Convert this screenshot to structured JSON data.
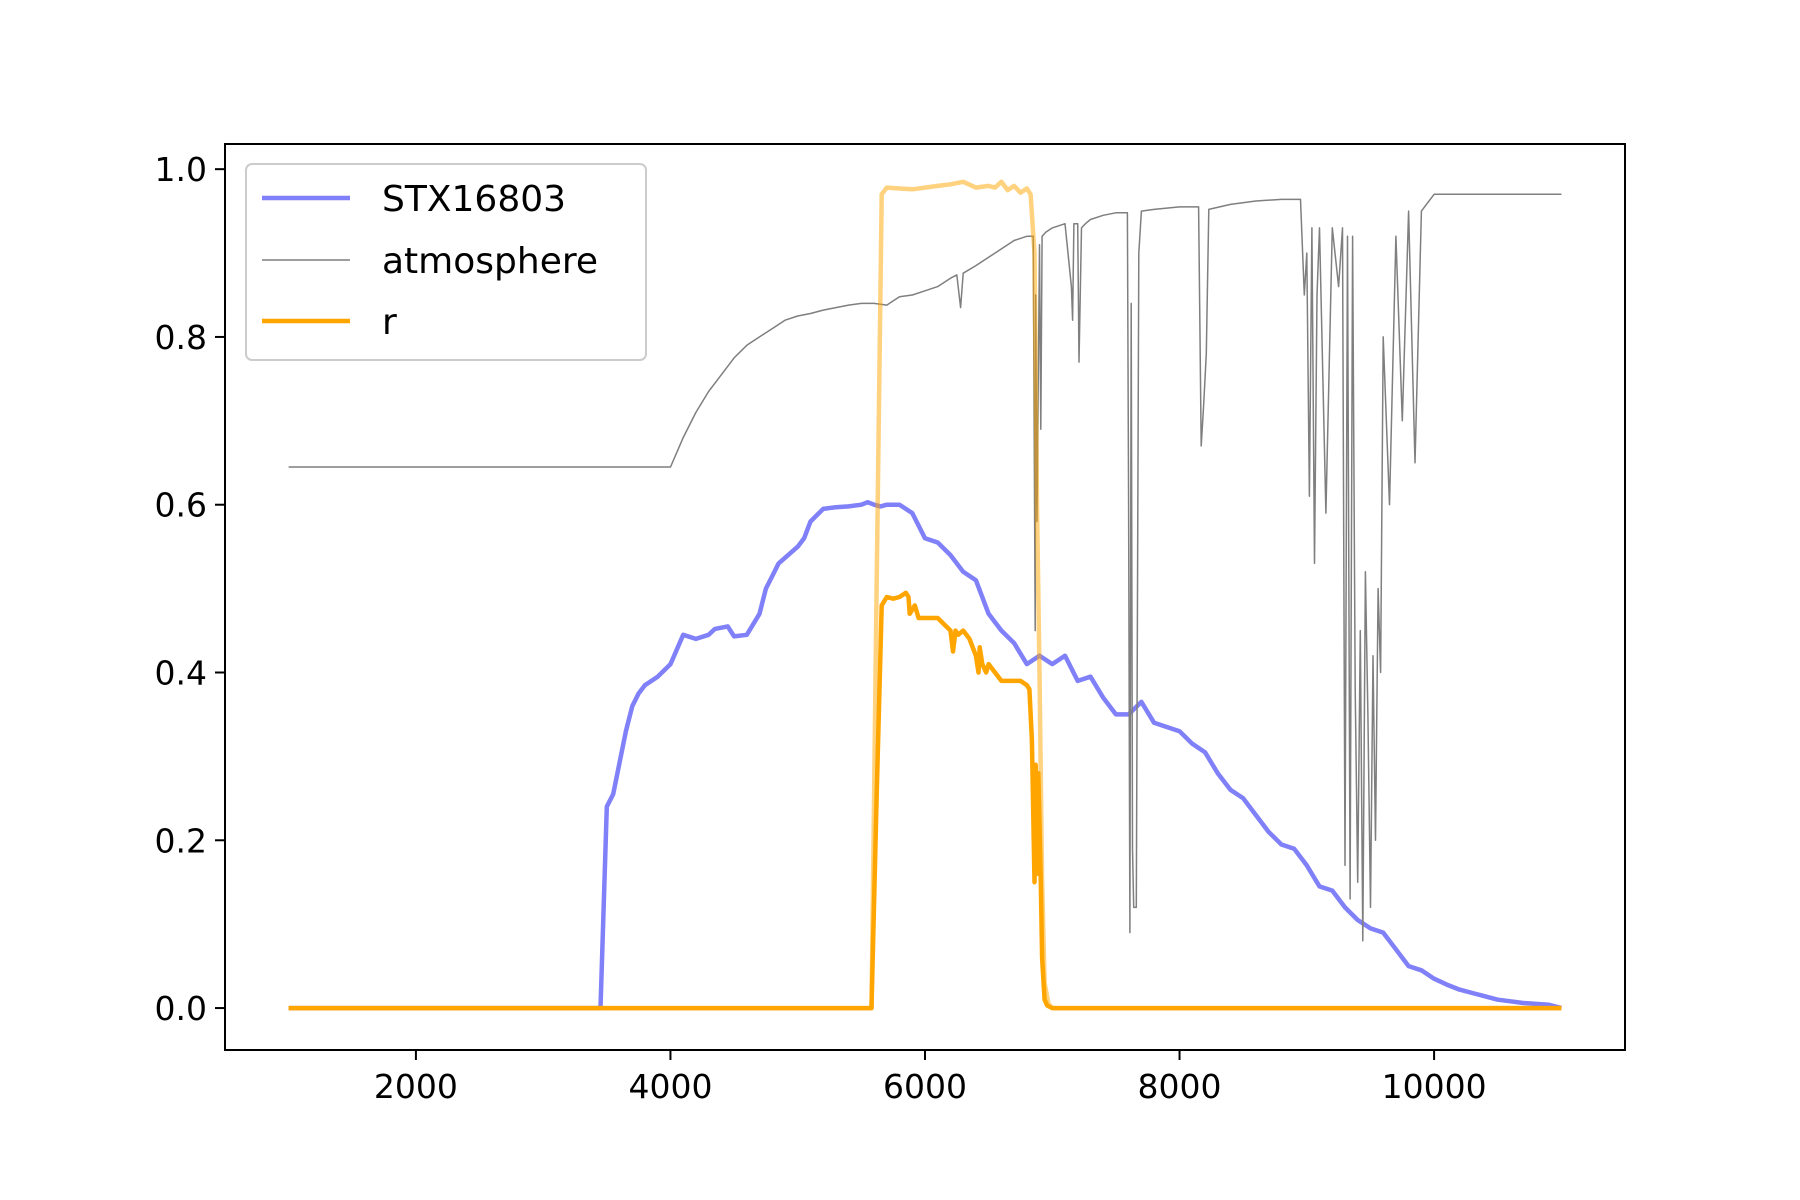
{
  "chart_data": {
    "type": "line",
    "title": "",
    "xlabel": "",
    "ylabel": "",
    "xlim": [
      500,
      11500
    ],
    "ylim": [
      -0.05,
      1.03
    ],
    "xticks": [
      2000,
      4000,
      6000,
      8000,
      10000
    ],
    "yticks": [
      0.0,
      0.2,
      0.4,
      0.6,
      0.8,
      1.0
    ],
    "xtick_labels": [
      "2000",
      "4000",
      "6000",
      "8000",
      "10000"
    ],
    "ytick_labels": [
      "0.0",
      "0.2",
      "0.4",
      "0.6",
      "0.8",
      "1.0"
    ],
    "grid": false,
    "legend_position": "upper-left",
    "series": [
      {
        "name": "STX16803",
        "color": "#8080f8",
        "x": [
          1000,
          3450,
          3500,
          3550,
          3650,
          3700,
          3750,
          3800,
          3900,
          4000,
          4100,
          4200,
          4300,
          4350,
          4450,
          4500,
          4600,
          4700,
          4750,
          4800,
          4850,
          5000,
          5050,
          5100,
          5200,
          5300,
          5400,
          5500,
          5550,
          5600,
          5650,
          5700,
          5800,
          5900,
          6000,
          6100,
          6200,
          6300,
          6400,
          6500,
          6600,
          6700,
          6800,
          6900,
          7000,
          7100,
          7200,
          7300,
          7400,
          7500,
          7600,
          7700,
          7800,
          7900,
          8000,
          8100,
          8200,
          8300,
          8400,
          8500,
          8600,
          8700,
          8800,
          8900,
          9000,
          9100,
          9200,
          9300,
          9400,
          9500,
          9600,
          9700,
          9800,
          9900,
          10000,
          10100,
          10200,
          10300,
          10400,
          10500,
          10600,
          10700,
          10800,
          10900,
          11000
        ],
        "y": [
          0,
          0,
          0.24,
          0.255,
          0.33,
          0.36,
          0.375,
          0.385,
          0.395,
          0.41,
          0.445,
          0.44,
          0.445,
          0.452,
          0.455,
          0.443,
          0.445,
          0.47,
          0.5,
          0.515,
          0.53,
          0.55,
          0.56,
          0.58,
          0.595,
          0.597,
          0.598,
          0.6,
          0.603,
          0.6,
          0.598,
          0.6,
          0.6,
          0.59,
          0.56,
          0.555,
          0.54,
          0.52,
          0.51,
          0.47,
          0.45,
          0.435,
          0.41,
          0.42,
          0.41,
          0.42,
          0.39,
          0.395,
          0.37,
          0.35,
          0.35,
          0.365,
          0.34,
          0.335,
          0.33,
          0.315,
          0.305,
          0.28,
          0.26,
          0.25,
          0.23,
          0.21,
          0.195,
          0.19,
          0.17,
          0.145,
          0.14,
          0.12,
          0.105,
          0.095,
          0.09,
          0.07,
          0.05,
          0.045,
          0.035,
          0.028,
          0.022,
          0.018,
          0.014,
          0.01,
          0.008,
          0.006,
          0.005,
          0.004,
          0.0
        ]
      },
      {
        "name": "atmosphere",
        "color": "#7f7f7f",
        "x": [
          1000,
          4000,
          4100,
          4200,
          4300,
          4400,
          4500,
          4600,
          4700,
          4800,
          4900,
          5000,
          5100,
          5200,
          5300,
          5400,
          5500,
          5600,
          5700,
          5800,
          5900,
          6000,
          6100,
          6200,
          6250,
          6280,
          6300,
          6400,
          6500,
          6600,
          6700,
          6800,
          6850,
          6866,
          6870,
          6880,
          6900,
          6910,
          6920,
          6950,
          7000,
          7100,
          7150,
          7160,
          7170,
          7200,
          7210,
          7230,
          7260,
          7300,
          7400,
          7500,
          7590,
          7600,
          7610,
          7620,
          7630,
          7640,
          7660,
          7680,
          7700,
          7800,
          8000,
          8150,
          8170,
          8190,
          8210,
          8230,
          8400,
          8600,
          8800,
          8950,
          8980,
          9000,
          9020,
          9040,
          9060,
          9080,
          9100,
          9150,
          9200,
          9250,
          9280,
          9300,
          9320,
          9340,
          9360,
          9380,
          9400,
          9420,
          9440,
          9460,
          9480,
          9500,
          9520,
          9540,
          9560,
          9580,
          9600,
          9650,
          9700,
          9750,
          9800,
          9850,
          9900,
          10000,
          11000
        ],
        "y": [
          0.645,
          0.645,
          0.68,
          0.71,
          0.735,
          0.755,
          0.775,
          0.79,
          0.8,
          0.81,
          0.82,
          0.825,
          0.828,
          0.832,
          0.835,
          0.838,
          0.84,
          0.84,
          0.838,
          0.848,
          0.85,
          0.855,
          0.86,
          0.87,
          0.874,
          0.835,
          0.876,
          0.885,
          0.895,
          0.905,
          0.915,
          0.92,
          0.92,
          0.45,
          0.85,
          0.58,
          0.91,
          0.69,
          0.92,
          0.925,
          0.93,
          0.935,
          0.86,
          0.82,
          0.935,
          0.935,
          0.77,
          0.93,
          0.935,
          0.94,
          0.945,
          0.948,
          0.948,
          0.6,
          0.09,
          0.84,
          0.19,
          0.12,
          0.12,
          0.9,
          0.95,
          0.952,
          0.955,
          0.955,
          0.67,
          0.72,
          0.78,
          0.952,
          0.958,
          0.962,
          0.964,
          0.964,
          0.85,
          0.9,
          0.61,
          0.93,
          0.53,
          0.85,
          0.93,
          0.59,
          0.93,
          0.86,
          0.93,
          0.17,
          0.92,
          0.13,
          0.92,
          0.38,
          0.15,
          0.45,
          0.08,
          0.52,
          0.35,
          0.12,
          0.42,
          0.2,
          0.5,
          0.4,
          0.8,
          0.6,
          0.92,
          0.7,
          0.95,
          0.65,
          0.95,
          0.97,
          0.97
        ]
      },
      {
        "name": "",
        "color": "#ffa500",
        "opacity": 0.5,
        "x": [
          1000,
          5580,
          5620,
          5660,
          5700,
          5800,
          5900,
          6000,
          6100,
          6200,
          6300,
          6400,
          6500,
          6550,
          6600,
          6650,
          6700,
          6750,
          6800,
          6830,
          6860,
          6880,
          6900,
          6920,
          6940,
          6970,
          7000,
          11000
        ],
        "y": [
          0,
          0,
          0.5,
          0.97,
          0.978,
          0.977,
          0.976,
          0.978,
          0.98,
          0.982,
          0.985,
          0.978,
          0.98,
          0.978,
          0.985,
          0.975,
          0.98,
          0.972,
          0.977,
          0.97,
          0.9,
          0.6,
          0.4,
          0.15,
          0.03,
          0.005,
          0,
          0
        ]
      },
      {
        "name": "r",
        "color": "#ffa500",
        "x": [
          1000,
          5580,
          5620,
          5660,
          5700,
          5750,
          5800,
          5850,
          5870,
          5880,
          5900,
          5920,
          5950,
          6000,
          6100,
          6200,
          6220,
          6240,
          6260,
          6300,
          6350,
          6400,
          6420,
          6430,
          6450,
          6480,
          6500,
          6600,
          6700,
          6750,
          6800,
          6820,
          6840,
          6860,
          6870,
          6880,
          6890,
          6900,
          6910,
          6920,
          6940,
          6960,
          7000,
          11000
        ],
        "y": [
          0,
          0,
          0.25,
          0.48,
          0.49,
          0.488,
          0.49,
          0.495,
          0.49,
          0.47,
          0.475,
          0.48,
          0.465,
          0.465,
          0.465,
          0.45,
          0.425,
          0.45,
          0.445,
          0.45,
          0.44,
          0.42,
          0.4,
          0.43,
          0.41,
          0.4,
          0.41,
          0.39,
          0.39,
          0.39,
          0.385,
          0.38,
          0.32,
          0.15,
          0.29,
          0.16,
          0.28,
          0.22,
          0.15,
          0.06,
          0.01,
          0.003,
          0,
          0
        ]
      }
    ]
  }
}
